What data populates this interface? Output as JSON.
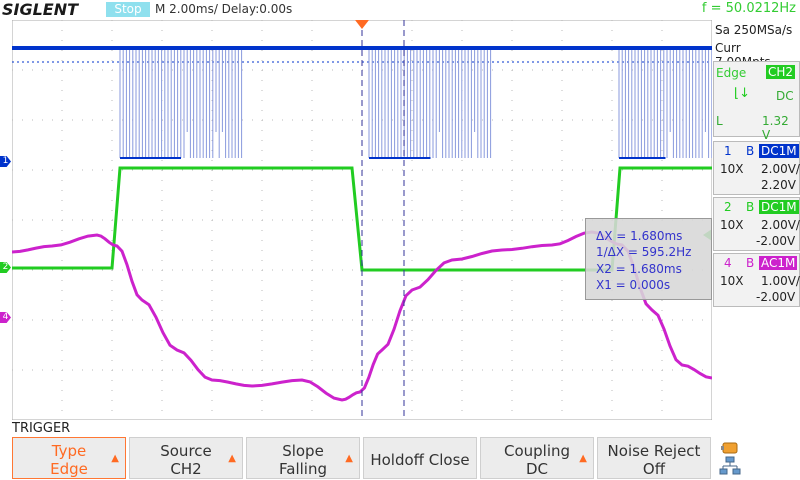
{
  "brand": "SIGLENT",
  "status": "Stop",
  "timebase": "M 2.00ms/ Delay:0.00s",
  "frequency": "f = 50.0212Hz",
  "acq": {
    "sample_rate": "Sa 250MSa/s",
    "memory": "Curr 7.00Mpts"
  },
  "trigger_info": {
    "mode": "Edge",
    "source": "CH2",
    "coupling": "DC",
    "level_label": "L",
    "level": "1.32 V"
  },
  "channels": [
    {
      "num": "1",
      "b": "B",
      "coupling": "DC1M",
      "probe": "10X",
      "scale": "2.00V/",
      "offset": "2.20V",
      "color": "#0033cc"
    },
    {
      "num": "2",
      "b": "B",
      "coupling": "DC1M",
      "probe": "10X",
      "scale": "2.00V/",
      "offset": "-2.00V",
      "color": "#22cc22"
    },
    {
      "num": "4",
      "b": "B",
      "coupling": "AC1M",
      "probe": "10X",
      "scale": "1.00V/",
      "offset": "-2.00V",
      "color": "#cc22cc"
    }
  ],
  "measure": {
    "dx": "ΔX = 1.680ms",
    "inv_dx": "1/ΔX = 595.2Hz",
    "x2": "X2 = 1.680ms",
    "x1": "X1 = 0.000s"
  },
  "menu": {
    "title": "TRIGGER",
    "buttons": [
      {
        "l1": "Type",
        "l2": "Edge"
      },
      {
        "l1": "Source",
        "l2": "CH2"
      },
      {
        "l1": "Slope",
        "l2": "Falling"
      },
      {
        "l1": "Holdoff Close",
        "l2": ""
      },
      {
        "l1": "Coupling",
        "l2": "DC"
      },
      {
        "l1": "Noise Reject",
        "l2": "Off"
      }
    ]
  },
  "markers": {
    "ch1": "1",
    "ch2": "2",
    "ch4": "4"
  },
  "colors": {
    "ch1": "#0033cc",
    "ch2": "#22cc22",
    "ch4": "#cc22cc",
    "cursor": "#333399",
    "accent": "#ff6a22",
    "stop_bg": "#8fe0ee"
  }
}
